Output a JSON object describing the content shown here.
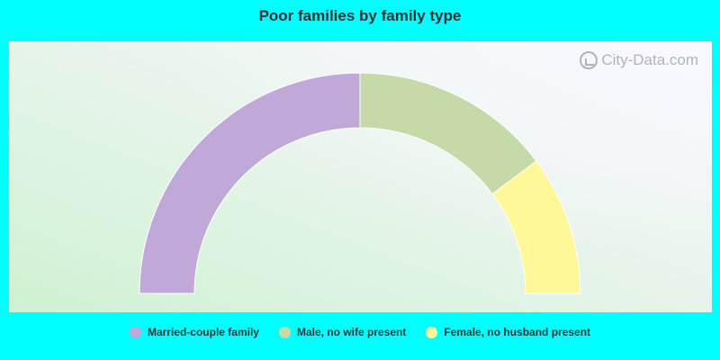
{
  "chart_data": {
    "type": "pie",
    "title": "Poor families by family type",
    "categories": [
      "Married-couple family",
      "Male, no wife present",
      "Female, no husband present"
    ],
    "values": [
      50.0,
      29.5,
      20.5
    ],
    "colors": [
      "#c0a8d8",
      "#c5daa8",
      "#fff899"
    ],
    "legend_position": "bottom"
  },
  "watermark": {
    "text": "City-Data.com",
    "icon": "city-data-logo-icon"
  }
}
